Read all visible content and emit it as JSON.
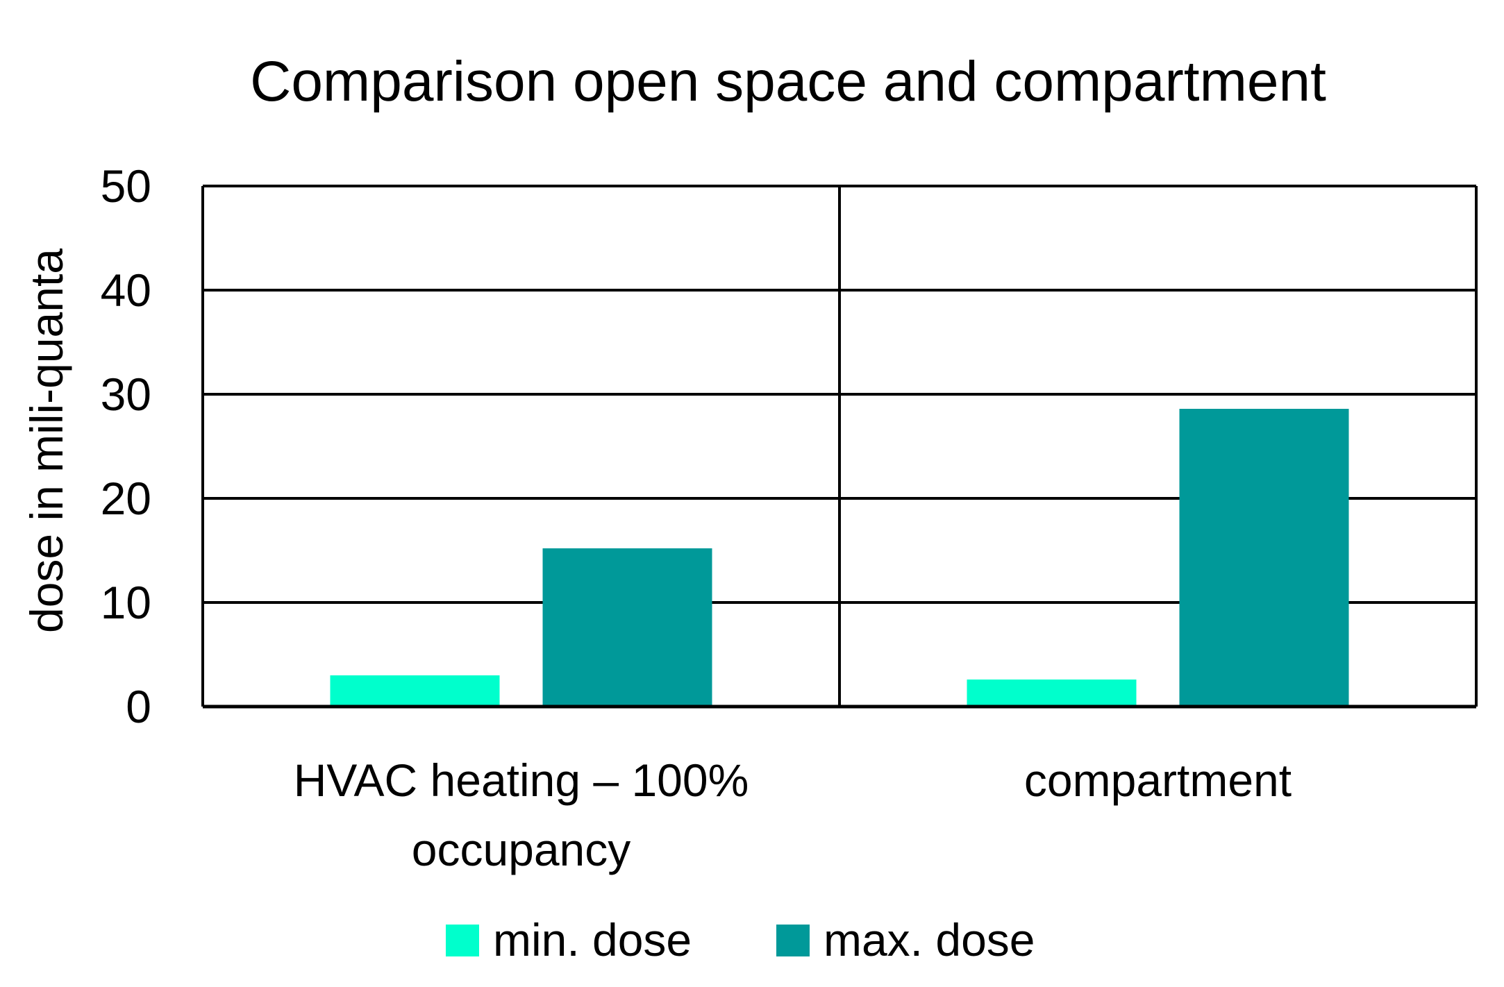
{
  "chart_data": {
    "type": "bar",
    "title": "Comparison open space and compartment",
    "xlabel": "",
    "ylabel": "dose in mili-quanta",
    "categories": [
      [
        "HVAC heating – 100%",
        "occupancy"
      ],
      [
        "compartment"
      ]
    ],
    "series": [
      {
        "name": "min. dose",
        "values": [
          3.0,
          2.6
        ],
        "color": "#00FFCC"
      },
      {
        "name": "max. dose",
        "values": [
          15.2,
          28.6
        ],
        "color": "#009999"
      }
    ],
    "ylim": [
      0,
      50
    ],
    "yticks": [
      0,
      10,
      20,
      30,
      40,
      50
    ],
    "grid": true,
    "legend_position": "bottom"
  }
}
